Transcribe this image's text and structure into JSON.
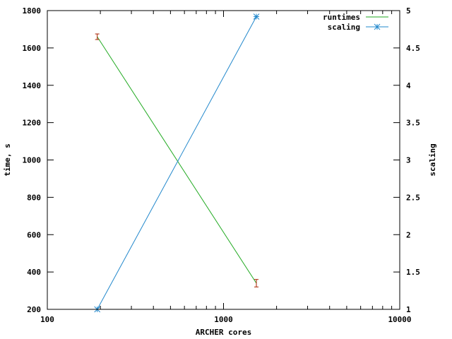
{
  "chart_data": {
    "type": "line",
    "x_scale": "log",
    "xlabel": "ARCHER cores",
    "ylabel_left": "time, s",
    "ylabel_right": "scaling",
    "xlim": [
      100,
      10000
    ],
    "ylim_left": [
      200,
      1800
    ],
    "ylim_right": [
      1,
      5
    ],
    "x_ticks": [
      100,
      1000,
      10000
    ],
    "x_tick_labels": [
      "100",
      "1000",
      "10000"
    ],
    "y_left_ticks": [
      200,
      400,
      600,
      800,
      1000,
      1200,
      1400,
      1600,
      1800
    ],
    "y_left_tick_labels": [
      "200",
      "400",
      "600",
      "800",
      "1000",
      "1200",
      "1400",
      "1600",
      "1800"
    ],
    "y_right_ticks": [
      1,
      1.5,
      2,
      2.5,
      3,
      3.5,
      4,
      4.5,
      5
    ],
    "y_right_tick_labels": [
      "1",
      "1.5",
      "2",
      "2.5",
      "3",
      "3.5",
      "4",
      "4.5",
      "5"
    ],
    "grid": false,
    "legend_position": "top-right",
    "series": [
      {
        "name": "runtimes",
        "axis": "left",
        "color": "#22aa22",
        "x": [
          192,
          1536
        ],
        "y": [
          1660,
          340
        ],
        "errorbars": {
          "color": "#aa2200",
          "low": [
            1645,
            320
          ],
          "high": [
            1675,
            360
          ]
        }
      },
      {
        "name": "scaling",
        "axis": "right",
        "color": "#2288cc",
        "marker": "asterisk",
        "x": [
          192,
          1536
        ],
        "y": [
          1,
          4.92
        ]
      }
    ]
  }
}
